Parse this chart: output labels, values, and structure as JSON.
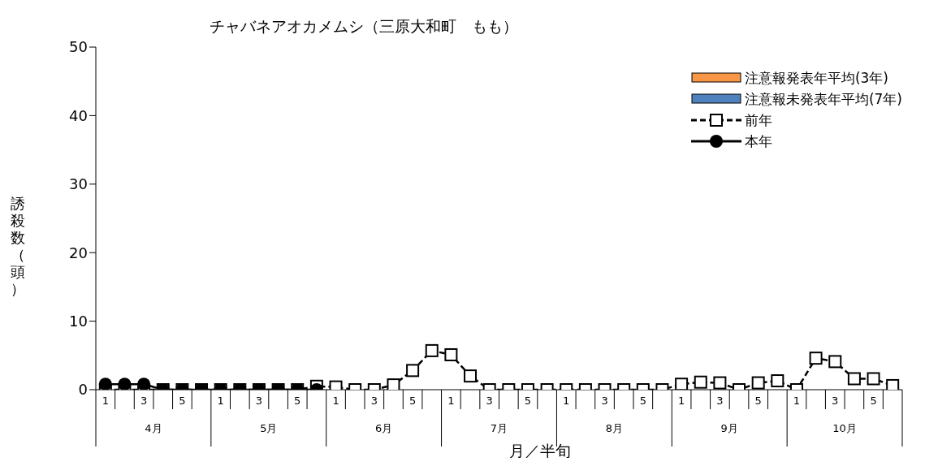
{
  "chart_data": {
    "type": "line",
    "title": "チャバネアオカメムシ（三原大和町　もも）",
    "xlabel": "月／半旬",
    "ylabel": "誘殺数（頭）",
    "categories": [
      "1",
      null,
      "3",
      null,
      "5",
      null,
      "1",
      null,
      "3",
      null,
      "5",
      null,
      "1",
      null,
      "3",
      null,
      "5",
      null,
      "1",
      null,
      "3",
      null,
      "5",
      null,
      "1",
      null,
      "3",
      null,
      "5",
      null,
      "1",
      null,
      "3",
      null,
      "5",
      null,
      "1",
      null,
      "3",
      null,
      "5",
      null
    ],
    "annotations": [
      "4月",
      "5月",
      "6月",
      "7月",
      "8月",
      "9月",
      "10月"
    ],
    "series": [
      {
        "name": "注意報発表年平均(3年)",
        "type": "bar",
        "color": "#f79646",
        "values": [
          0,
          0,
          0,
          0,
          0,
          0,
          0,
          0,
          0,
          0,
          0,
          0,
          0,
          0,
          0,
          0,
          0,
          0,
          0,
          0,
          0,
          0,
          0,
          0,
          0,
          0,
          0,
          0,
          0,
          0,
          0,
          0,
          0,
          0,
          0,
          0,
          0,
          0,
          0,
          0,
          0,
          0
        ]
      },
      {
        "name": "注意報未発表年平均(7年)",
        "type": "bar",
        "color": "#4f81bd",
        "values": [
          0,
          0,
          0,
          0,
          0,
          0,
          0,
          0,
          0,
          0,
          0,
          0,
          0,
          0,
          0,
          0,
          0,
          0,
          0,
          0,
          0,
          0,
          0,
          0,
          0,
          0,
          0,
          0,
          0,
          0,
          0,
          0,
          0,
          0,
          0,
          0,
          0,
          0,
          0,
          0,
          0,
          0
        ]
      },
      {
        "name": "前年",
        "color": "#000000",
        "marker": "square",
        "line_style": "dashed",
        "values": [
          0,
          0,
          0,
          0,
          0,
          0,
          0,
          0,
          0,
          0,
          0,
          0.5,
          0.4,
          0,
          0,
          0.7,
          2.8,
          5.7,
          5.1,
          2.0,
          0,
          0,
          0,
          0,
          0,
          0,
          0,
          0,
          0,
          0,
          0.8,
          1.1,
          1.0,
          0,
          1.0,
          1.3,
          0,
          4.6,
          4.1,
          1.6,
          1.6,
          0.6
        ]
      },
      {
        "name": "本年",
        "color": "#000000",
        "marker": "circle",
        "line_style": "solid",
        "values": [
          0.8,
          0.8,
          0.8,
          0,
          0,
          0,
          0,
          0,
          0,
          0,
          0,
          0,
          null,
          null,
          null,
          null,
          null,
          null,
          null,
          null,
          null,
          null,
          null,
          null,
          null,
          null,
          null,
          null,
          null,
          null,
          null,
          null,
          null,
          null,
          null,
          null,
          null,
          null,
          null,
          null,
          null,
          null
        ]
      }
    ],
    "ylim": [
      0,
      50
    ],
    "yticks": [
      0,
      10,
      20,
      30,
      40,
      50
    ],
    "grid": false,
    "legend": "top right"
  }
}
